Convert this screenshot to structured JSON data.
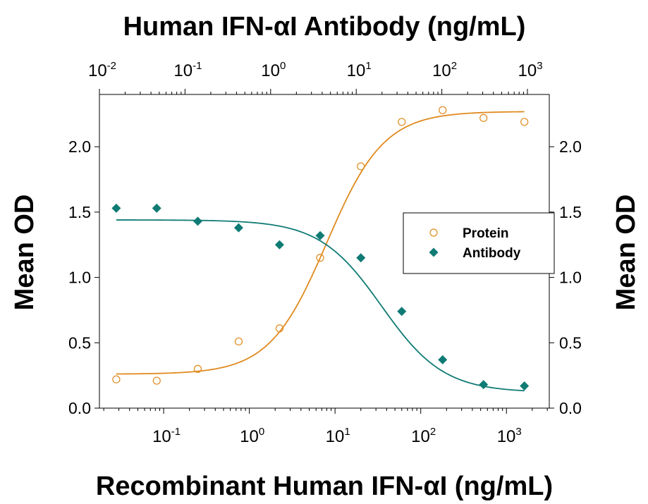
{
  "chart_data": {
    "type": "scatter",
    "title_top": "Human IFN-αI Antibody (ng/mL)",
    "xlabel": "Recombinant Human IFN-αI (ng/mL)",
    "ylabel_left": "Mean OD",
    "ylabel_right": "Mean OD",
    "x_scale": "log",
    "ylim": [
      0,
      2.4
    ],
    "bottom_xlim": [
      0.0178,
      3162
    ],
    "top_xlim": [
      0.01,
      1800
    ],
    "y_ticks": [
      {
        "value": 0.0,
        "label": "0.0"
      },
      {
        "value": 0.5,
        "label": "0.5"
      },
      {
        "value": 1.0,
        "label": "1.0"
      },
      {
        "value": 1.5,
        "label": "1.5"
      },
      {
        "value": 2.0,
        "label": "2.0"
      }
    ],
    "bottom_x_ticks": [
      {
        "value": 0.1,
        "base": "10",
        "exp": "-1"
      },
      {
        "value": 1,
        "base": "10",
        "exp": "0"
      },
      {
        "value": 10,
        "base": "10",
        "exp": "1"
      },
      {
        "value": 100,
        "base": "10",
        "exp": "2"
      },
      {
        "value": 1000,
        "base": "10",
        "exp": "3"
      }
    ],
    "top_x_ticks": [
      {
        "value": 0.01,
        "base": "10",
        "exp": "-2"
      },
      {
        "value": 0.1,
        "base": "10",
        "exp": "-1"
      },
      {
        "value": 1,
        "base": "10",
        "exp": "0"
      },
      {
        "value": 10,
        "base": "10",
        "exp": "1"
      },
      {
        "value": 100,
        "base": "10",
        "exp": "2"
      },
      {
        "value": 1000,
        "base": "10",
        "exp": "3"
      }
    ],
    "series": [
      {
        "name": "Protein",
        "axis": "bottom",
        "marker": "open-circle",
        "color": "#E08A1E",
        "x": [
          0.028,
          0.083,
          0.25,
          0.75,
          2.25,
          6.7,
          20,
          60,
          180,
          540,
          1620
        ],
        "y": [
          0.22,
          0.21,
          0.3,
          0.51,
          0.61,
          1.15,
          1.85,
          2.19,
          2.28,
          2.22,
          2.19
        ],
        "fit": {
          "bottom": 0.26,
          "top": 2.27,
          "ec50": 8.0,
          "hill": 1.3
        }
      },
      {
        "name": "Antibody",
        "axis": "bottom",
        "marker": "filled-diamond",
        "color": "#0F7B74",
        "x": [
          0.028,
          0.083,
          0.25,
          0.75,
          2.25,
          6.7,
          20,
          60,
          180,
          540,
          1620
        ],
        "y": [
          1.53,
          1.53,
          1.43,
          1.38,
          1.25,
          1.32,
          1.15,
          0.74,
          0.37,
          0.18,
          0.17
        ],
        "fit": {
          "bottom": 0.12,
          "top": 1.44,
          "ec50": 35,
          "hill": -1.2
        }
      }
    ],
    "legend": {
      "position": "right-middle",
      "entries": [
        {
          "label": "Protein",
          "marker": "open-circle",
          "color": "#E08A1E"
        },
        {
          "label": "Antibody",
          "marker": "filled-diamond",
          "color": "#0F7B74"
        }
      ]
    },
    "grid": false
  }
}
